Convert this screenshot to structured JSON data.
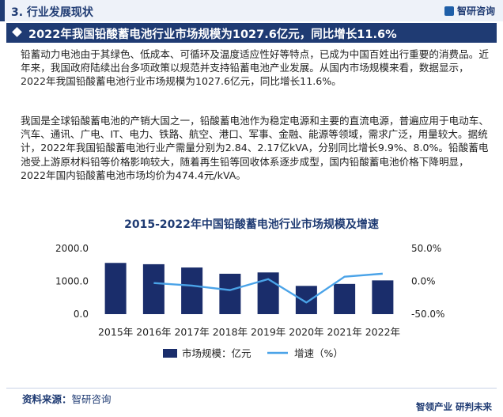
{
  "header": {
    "section_label": "3. 行业发展现状",
    "logo_text": "智研咨询"
  },
  "headline": "2022年我国铅酸蓄电池行业市场规模为1027.6亿元，同比增长11.6%",
  "paragraphs": [
    "铅蓄动力电池由于其绿色、低成本、可循环及温度适应性好等特点，已成为中国百姓出行重要的消费品。近年来，我国政府陆续出台多项政策以规范并支持铅蓄电池产业发展。从国内市场规模来看，数据显示，2022年我国铅酸蓄电池行业市场规模为1027.6亿元，同比增长11.6%。",
    "我国是全球铅酸蓄电池的产销大国之一，铅酸蓄电池作为稳定电源和主要的直流电源，普遍应用于电动车、汽车、通讯、广电、IT、电力、铁路、航空、港口、军事、金融、能源等领域，需求广泛，用量较大。据统计，2022年我国铅酸蓄电池行业产需量分别为2.84、2.17亿kVA，分别同比增长9.9%、8.0%。铅酸蓄电池受上游原材料铅等价格影响较大，随着再生铅等回收体系逐步成型，国内铅酸蓄电池价格下降明显，2022年国内铅酸蓄电池市场均价为474.4元/kVA。"
  ],
  "chart_data": {
    "type": "bar",
    "title": "2015-2022年中国铅酸蓄电池行业市场规模及增速",
    "categories": [
      "2015年",
      "2016年",
      "2017年",
      "2018年",
      "2019年",
      "2020年",
      "2021年",
      "2022年"
    ],
    "series": [
      {
        "name": "市场规模：亿元",
        "type": "bar",
        "axis": "left",
        "color": "#1a2d6b",
        "values": [
          1560,
          1520,
          1420,
          1230,
          1270,
          860,
          920,
          1027.6
        ]
      },
      {
        "name": "增速（%）",
        "type": "line",
        "axis": "right",
        "color": "#4aa3e8",
        "values": [
          null,
          -2.6,
          -6.6,
          -13.4,
          3.3,
          -32.3,
          7.0,
          11.6
        ]
      }
    ],
    "y_left": {
      "min": 0,
      "max": 2000,
      "ticks": [
        0,
        1000,
        2000
      ],
      "tick_labels": [
        "0.0",
        "1000.0",
        "2000.0"
      ]
    },
    "y_right": {
      "min": -50,
      "max": 50,
      "ticks": [
        -50,
        0,
        50
      ],
      "tick_labels": [
        "-50.0%",
        "0.0%",
        "50.0%"
      ]
    },
    "legend_position": "bottom",
    "grid": false
  },
  "footer": {
    "source_label": "资料来源：",
    "source_value": "智研咨询",
    "tagline": "智领产业 研判未来"
  },
  "colors": {
    "primary": "#1f3b73",
    "bar": "#1a2d6b",
    "line": "#4aa3e8"
  }
}
